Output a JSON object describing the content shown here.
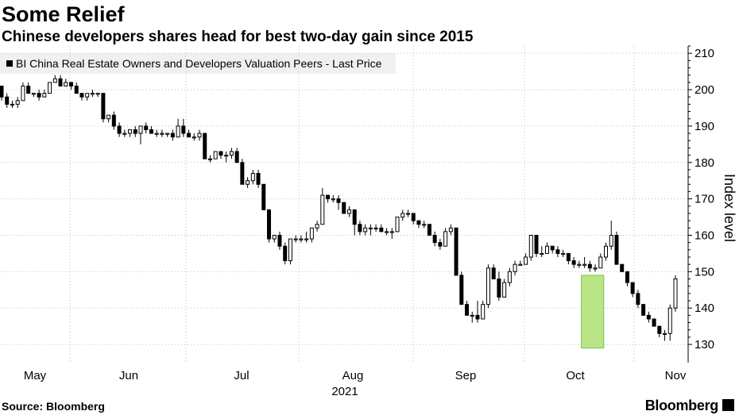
{
  "chart_data": {
    "type": "candlestick",
    "title": "Some Relief",
    "subtitle": "Chinese developers shares head for best two-day gain since 2015",
    "legend": "BI China Real Estate Owners and Developers Valuation Peers - Last Price",
    "ylabel": "Index level",
    "ylim": [
      125,
      212
    ],
    "yticks": [
      130,
      140,
      150,
      160,
      170,
      180,
      190,
      200,
      210
    ],
    "months": [
      "May",
      "Jun",
      "Jul",
      "Aug",
      "Sep",
      "Oct",
      "Nov"
    ],
    "year_label": "2021",
    "highlight": {
      "from_index": 109,
      "to_index": 112,
      "low": 129,
      "high": 149
    },
    "up_color": "#ffffff",
    "down_color": "#000000",
    "highlight_color": "#b9e586",
    "candles": [
      [
        201,
        201,
        197,
        198
      ],
      [
        198,
        199,
        195,
        196
      ],
      [
        196,
        197,
        195,
        196
      ],
      [
        196,
        198,
        195,
        197
      ],
      [
        197,
        202,
        197,
        201
      ],
      [
        201,
        202,
        199,
        199
      ],
      [
        199,
        199,
        198,
        199
      ],
      [
        199,
        200,
        197,
        198
      ],
      [
        198,
        200,
        198,
        199
      ],
      [
        199,
        202,
        199,
        202
      ],
      [
        202,
        204,
        202,
        203
      ],
      [
        203,
        204,
        201,
        201
      ],
      [
        201,
        203,
        201,
        202
      ],
      [
        202,
        202,
        200,
        201
      ],
      [
        201,
        202,
        199,
        199
      ],
      [
        199,
        199,
        197,
        198
      ],
      [
        198,
        199,
        197,
        199
      ],
      [
        199,
        200,
        198,
        199
      ],
      [
        199,
        199,
        198,
        199
      ],
      [
        199,
        199,
        191,
        192
      ],
      [
        192,
        193,
        191,
        193
      ],
      [
        193,
        194,
        189,
        190
      ],
      [
        190,
        191,
        187,
        188
      ],
      [
        188,
        189,
        187,
        188
      ],
      [
        188,
        189,
        187,
        189
      ],
      [
        189,
        190,
        187,
        188
      ],
      [
        188,
        190,
        185,
        190
      ],
      [
        190,
        191,
        188,
        189
      ],
      [
        189,
        190,
        188,
        188
      ],
      [
        188,
        189,
        187,
        188
      ],
      [
        188,
        189,
        187,
        188
      ],
      [
        188,
        188,
        187,
        188
      ],
      [
        188,
        189,
        186,
        187
      ],
      [
        187,
        192,
        187,
        190
      ],
      [
        190,
        192,
        187,
        188
      ],
      [
        188,
        189,
        187,
        187
      ],
      [
        187,
        188,
        186,
        187
      ],
      [
        187,
        189,
        186,
        188
      ],
      [
        188,
        188,
        181,
        181
      ],
      [
        181,
        182,
        180,
        181
      ],
      [
        181,
        183,
        181,
        183
      ],
      [
        183,
        183,
        181,
        182
      ],
      [
        182,
        183,
        180,
        182
      ],
      [
        182,
        184,
        181,
        183
      ],
      [
        183,
        184,
        180,
        180
      ],
      [
        180,
        181,
        174,
        174
      ],
      [
        174,
        176,
        173,
        175
      ],
      [
        175,
        178,
        174,
        177
      ],
      [
        177,
        178,
        173,
        174
      ],
      [
        174,
        174,
        167,
        167
      ],
      [
        167,
        167,
        158,
        159
      ],
      [
        159,
        160,
        158,
        160
      ],
      [
        160,
        161,
        156,
        157
      ],
      [
        157,
        158,
        152,
        153
      ],
      [
        153,
        159,
        152,
        159
      ],
      [
        159,
        160,
        158,
        159
      ],
      [
        159,
        160,
        158,
        159
      ],
      [
        159,
        161,
        158,
        159
      ],
      [
        159,
        162,
        158,
        162
      ],
      [
        162,
        164,
        161,
        163
      ],
      [
        163,
        173,
        163,
        171
      ],
      [
        171,
        171,
        169,
        170
      ],
      [
        170,
        171,
        169,
        170
      ],
      [
        170,
        171,
        167,
        169
      ],
      [
        169,
        169,
        166,
        166
      ],
      [
        166,
        168,
        165,
        167
      ],
      [
        167,
        167,
        160,
        163
      ],
      [
        163,
        164,
        160,
        161
      ],
      [
        161,
        163,
        160,
        162
      ],
      [
        162,
        163,
        160,
        162
      ],
      [
        162,
        163,
        161,
        162
      ],
      [
        162,
        163,
        161,
        161
      ],
      [
        161,
        162,
        160,
        161
      ],
      [
        161,
        162,
        159,
        161
      ],
      [
        161,
        165,
        161,
        165
      ],
      [
        165,
        167,
        164,
        166
      ],
      [
        166,
        167,
        165,
        166
      ],
      [
        166,
        166,
        163,
        164
      ],
      [
        164,
        164,
        162,
        163
      ],
      [
        163,
        164,
        162,
        163
      ],
      [
        163,
        163,
        160,
        160
      ],
      [
        160,
        161,
        157,
        158
      ],
      [
        158,
        159,
        156,
        157
      ],
      [
        157,
        162,
        157,
        161
      ],
      [
        161,
        163,
        160,
        162
      ],
      [
        162,
        162,
        149,
        149
      ],
      [
        149,
        150,
        141,
        141
      ],
      [
        141,
        142,
        138,
        138
      ],
      [
        138,
        139,
        136,
        138
      ],
      [
        138,
        142,
        136,
        137
      ],
      [
        137,
        142,
        137,
        141
      ],
      [
        141,
        152,
        140,
        151
      ],
      [
        151,
        152,
        148,
        148
      ],
      [
        148,
        150,
        142,
        143
      ],
      [
        143,
        148,
        143,
        147
      ],
      [
        147,
        151,
        146,
        150
      ],
      [
        150,
        153,
        149,
        152
      ],
      [
        152,
        153,
        152,
        152
      ],
      [
        152,
        155,
        152,
        154
      ],
      [
        154,
        160,
        153,
        160
      ],
      [
        160,
        160,
        154,
        155
      ],
      [
        155,
        157,
        154,
        155
      ],
      [
        155,
        158,
        155,
        157
      ],
      [
        157,
        157,
        155,
        156
      ],
      [
        156,
        157,
        154,
        155
      ],
      [
        155,
        156,
        154,
        155
      ],
      [
        155,
        155,
        152,
        153
      ],
      [
        153,
        154,
        151,
        152
      ],
      [
        152,
        153,
        151,
        152
      ],
      [
        152,
        154,
        151,
        152
      ],
      [
        152,
        153,
        150,
        151
      ],
      [
        151,
        152,
        150,
        151
      ],
      [
        151,
        155,
        151,
        154
      ],
      [
        154,
        158,
        153,
        157
      ],
      [
        157,
        164,
        156,
        160
      ],
      [
        160,
        161,
        152,
        152
      ],
      [
        152,
        152,
        150,
        150
      ],
      [
        150,
        150,
        146,
        147
      ],
      [
        147,
        147,
        143,
        144
      ],
      [
        144,
        145,
        140,
        141
      ],
      [
        141,
        141,
        138,
        138
      ],
      [
        138,
        139,
        136,
        137
      ],
      [
        137,
        137,
        135,
        135
      ],
      [
        135,
        135,
        132,
        133
      ],
      [
        133,
        134,
        131,
        133
      ],
      [
        133,
        141,
        131,
        140
      ],
      [
        140,
        149,
        139,
        148
      ]
    ]
  }
}
